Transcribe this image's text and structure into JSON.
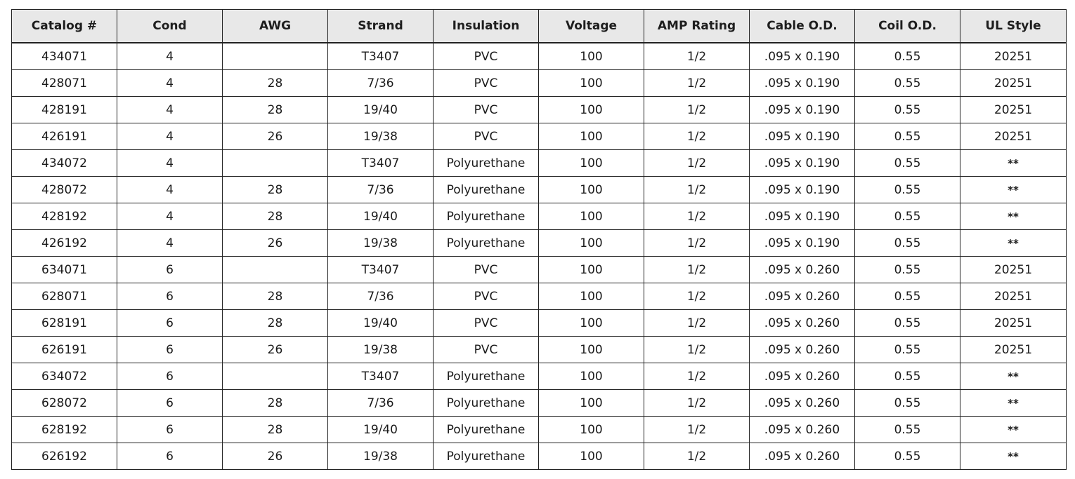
{
  "table": {
    "columns": [
      "Catalog #",
      "Cond",
      "AWG",
      "Strand",
      "Insulation",
      "Voltage",
      "AMP Rating",
      "Cable  O.D.",
      "Coil O.D.",
      "UL Style"
    ],
    "rows": [
      [
        "434071",
        "4",
        "",
        "T3407",
        "PVC",
        "100",
        "1/2",
        ".095 x 0.190",
        "0.55",
        "20251"
      ],
      [
        "428071",
        "4",
        "28",
        "7/36",
        "PVC",
        "100",
        "1/2",
        ".095 x 0.190",
        "0.55",
        "20251"
      ],
      [
        "428191",
        "4",
        "28",
        "19/40",
        "PVC",
        "100",
        "1/2",
        ".095 x 0.190",
        "0.55",
        "20251"
      ],
      [
        "426191",
        "4",
        "26",
        "19/38",
        "PVC",
        "100",
        "1/2",
        ".095 x 0.190",
        "0.55",
        "20251"
      ],
      [
        "434072",
        "4",
        "",
        "T3407",
        "Polyurethane",
        "100",
        "1/2",
        ".095 x 0.190",
        "0.55",
        "**"
      ],
      [
        "428072",
        "4",
        "28",
        "7/36",
        "Polyurethane",
        "100",
        "1/2",
        ".095 x 0.190",
        "0.55",
        "**"
      ],
      [
        "428192",
        "4",
        "28",
        "19/40",
        "Polyurethane",
        "100",
        "1/2",
        ".095 x 0.190",
        "0.55",
        "**"
      ],
      [
        "426192",
        "4",
        "26",
        "19/38",
        "Polyurethane",
        "100",
        "1/2",
        ".095 x 0.190",
        "0.55",
        "**"
      ],
      [
        "634071",
        "6",
        "",
        "T3407",
        "PVC",
        "100",
        "1/2",
        ".095 x 0.260",
        "0.55",
        "20251"
      ],
      [
        "628071",
        "6",
        "28",
        "7/36",
        "PVC",
        "100",
        "1/2",
        ".095 x 0.260",
        "0.55",
        "20251"
      ],
      [
        "628191",
        "6",
        "28",
        "19/40",
        "PVC",
        "100",
        "1/2",
        ".095 x 0.260",
        "0.55",
        "20251"
      ],
      [
        "626191",
        "6",
        "26",
        "19/38",
        "PVC",
        "100",
        "1/2",
        ".095 x 0.260",
        "0.55",
        "20251"
      ],
      [
        "634072",
        "6",
        "",
        "T3407",
        "Polyurethane",
        "100",
        "1/2",
        ".095 x 0.260",
        "0.55",
        "**"
      ],
      [
        "628072",
        "6",
        "28",
        "7/36",
        "Polyurethane",
        "100",
        "1/2",
        ".095 x 0.260",
        "0.55",
        "**"
      ],
      [
        "628192",
        "6",
        "28",
        "19/40",
        "Polyurethane",
        "100",
        "1/2",
        ".095 x 0.260",
        "0.55",
        "**"
      ],
      [
        "626192",
        "6",
        "26",
        "19/38",
        "Polyurethane",
        "100",
        "1/2",
        ".095 x 0.260",
        "0.55",
        "**"
      ]
    ]
  },
  "colors": {
    "header_background": "#e8e8e8",
    "border": "#222222",
    "text": "#1a1a1a"
  }
}
